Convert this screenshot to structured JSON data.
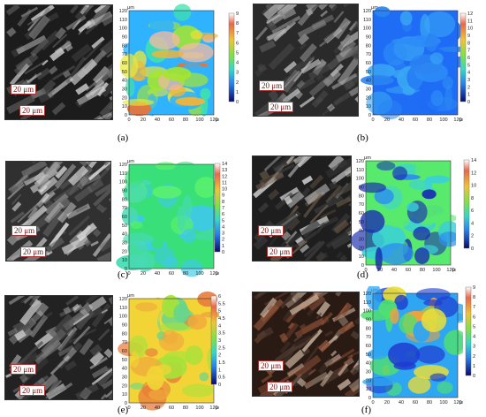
{
  "panels": [
    {
      "id": "a",
      "caption": "(a)",
      "unit": "μm",
      "scale_label": "20 μm",
      "scale_label_2": "20 μm",
      "y_ticks": [
        "120",
        "110",
        "100",
        "90",
        "80",
        "70",
        "60",
        "50",
        "40",
        "30",
        "20",
        "10",
        "0"
      ],
      "x_ticks": [
        "0",
        "20",
        "40",
        "60",
        "80",
        "100",
        "120"
      ],
      "x_unit": "μm",
      "cbar_ticks": [
        "9",
        "8",
        "7",
        "6",
        "5",
        "4",
        "3",
        "2",
        "1",
        "0"
      ],
      "palette": [
        "#2fb3ff",
        "#3fe0b0",
        "#a6e62b",
        "#e9e83a",
        "#f0b43a",
        "#e8733a",
        "#f3b9a2"
      ],
      "micro_tone": [
        "#1c1c1c",
        "#777",
        "#cfcfcf",
        "#555"
      ]
    },
    {
      "id": "b",
      "caption": "(b)",
      "unit": "μm",
      "scale_label": "20 μm",
      "scale_label_2": "20 μm",
      "y_ticks": [
        "120",
        "110",
        "100",
        "90",
        "80",
        "70",
        "60",
        "50",
        "40",
        "30",
        "20",
        "10",
        "0"
      ],
      "x_ticks": [
        "0",
        "20",
        "40",
        "60",
        "80",
        "100",
        "120"
      ],
      "x_unit": "μm",
      "cbar_ticks": [
        "12",
        "11",
        "10",
        "9",
        "8",
        "7",
        "6",
        "5",
        "4",
        "3",
        "2",
        "1",
        "0"
      ],
      "palette": [
        "#1f6cf5",
        "#2d8df7",
        "#3aa7f4",
        "#2b84f2"
      ],
      "micro_tone": [
        "#2a2a2a",
        "#8a8a8a",
        "#b6b6b6",
        "#4a4a4a"
      ]
    },
    {
      "id": "c",
      "caption": "(c)",
      "unit": "μm",
      "scale_label": "20 μm",
      "scale_label_2": "20 μm",
      "y_ticks": [
        "120",
        "110",
        "100",
        "90",
        "80",
        "70",
        "60",
        "50",
        "40",
        "30",
        "20",
        "10",
        "0"
      ],
      "x_ticks": [
        "0",
        "20",
        "40",
        "60",
        "80",
        "100",
        "120"
      ],
      "x_unit": "μm",
      "cbar_ticks": [
        "14",
        "13",
        "12",
        "11",
        "10",
        "9",
        "8",
        "7",
        "6",
        "5",
        "4",
        "3",
        "2",
        "1",
        "0"
      ],
      "palette": [
        "#39e07a",
        "#48d9b4",
        "#3fc9e8",
        "#5cf26a"
      ],
      "micro_tone": [
        "#303030",
        "#9a9a9a",
        "#e4e4e4",
        "#666"
      ]
    },
    {
      "id": "d",
      "caption": "(d)",
      "unit": "μm",
      "scale_label": "20 μm",
      "scale_label_2": "20 μm",
      "y_ticks": [
        "120",
        "110",
        "100",
        "90",
        "80",
        "70",
        "60",
        "50",
        "40",
        "30",
        "20",
        "10",
        "0"
      ],
      "x_ticks": [
        "0",
        "20",
        "40",
        "60",
        "80",
        "100",
        "120"
      ],
      "x_unit": "μm",
      "cbar_ticks": [
        "14",
        "12",
        "10",
        "8",
        "6",
        "4",
        "2",
        "0"
      ],
      "palette": [
        "#58ea6d",
        "#3bd0d9",
        "#2c8df0",
        "#1b2fb0"
      ],
      "micro_tone": [
        "#1e1e1e",
        "#6b5a48",
        "#d6d6d6",
        "#3a3a3a"
      ]
    },
    {
      "id": "e",
      "caption": "(e)",
      "unit": "μm",
      "scale_label": "20 μm",
      "scale_label_2": "20 μm",
      "y_ticks": [
        "120",
        "110",
        "100",
        "90",
        "80",
        "70",
        "60",
        "50",
        "40",
        "30",
        "20",
        "10",
        "0"
      ],
      "x_ticks": [
        "0",
        "20",
        "40",
        "60",
        "80",
        "100",
        "120"
      ],
      "x_unit": "μm",
      "cbar_ticks": [
        "6",
        "5.5",
        "5",
        "4.5",
        "4",
        "3.5",
        "3",
        "2.5",
        "2",
        "1.5",
        "1",
        "0.5",
        "0"
      ],
      "palette": [
        "#f2d437",
        "#f0a93c",
        "#e7793a",
        "#a6e23a",
        "#66d68c"
      ],
      "micro_tone": [
        "#222",
        "#7d7d7d",
        "#c8c8c8",
        "#4c4c4c"
      ]
    },
    {
      "id": "f",
      "caption": "(f)",
      "unit": "μm",
      "scale_label": "20 μm",
      "scale_label_2": "20 μm",
      "y_ticks": [
        "120",
        "110",
        "100",
        "90",
        "80",
        "70",
        "60",
        "50",
        "40",
        "30",
        "20",
        "10",
        "0"
      ],
      "x_ticks": [
        "0",
        "20",
        "40",
        "60",
        "80",
        "100",
        "120"
      ],
      "x_unit": "μm",
      "cbar_ticks": [
        "9",
        "8",
        "7",
        "6",
        "5",
        "4",
        "3",
        "2",
        "1",
        "0"
      ],
      "palette": [
        "#2fa6f2",
        "#50e06f",
        "#e9de3a",
        "#f0a23b",
        "#1f3cd0"
      ],
      "micro_tone": [
        "#2a1a14",
        "#8a5036",
        "#c7b19c",
        "#4d3b32"
      ]
    }
  ]
}
